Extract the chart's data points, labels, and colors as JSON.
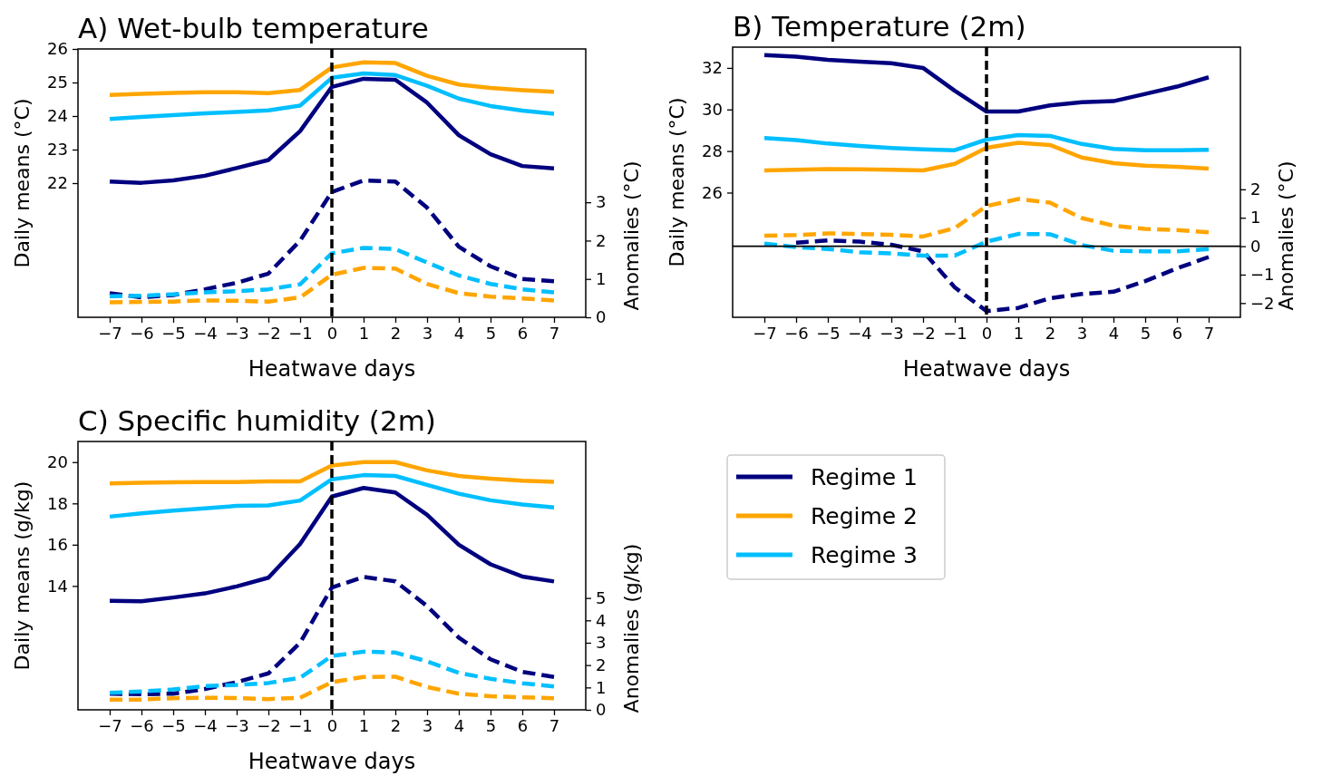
{
  "chart_data": [
    {
      "type": "line",
      "title": "A) Wet-bulb temperature",
      "xlabel": "Heatwave days",
      "ylabel": "Daily means (°C)",
      "y2label": "Anomalies (°C)",
      "x": [
        -7,
        -6,
        -5,
        -4,
        -3,
        -2,
        -1,
        0,
        1,
        2,
        3,
        4,
        5,
        6,
        7
      ],
      "xlim": [
        -8,
        8
      ],
      "xticks": [
        {
          "value": -7,
          "label": "−7"
        },
        {
          "value": -6,
          "label": "−6"
        },
        {
          "value": -5,
          "label": "−5"
        },
        {
          "value": -4,
          "label": "−4"
        },
        {
          "value": -3,
          "label": "−3"
        },
        {
          "value": -2,
          "label": "−2"
        },
        {
          "value": -1,
          "label": "−1"
        },
        0,
        1,
        2,
        3,
        4,
        5,
        6,
        7
      ],
      "ylim": [
        18,
        26
      ],
      "yticks": [
        22,
        23,
        24,
        25,
        26
      ],
      "y2lim": [
        0,
        7
      ],
      "y2ticks": [
        0,
        1,
        2,
        3
      ],
      "ref_lines": [
        {
          "axis": "x",
          "value": 0,
          "color": "#000000",
          "line_style": "dashed"
        }
      ],
      "series": [
        {
          "color": "#ffa500",
          "line_style": "solid",
          "values": [
            24.63,
            24.66,
            24.69,
            24.71,
            24.71,
            24.68,
            24.78,
            25.45,
            25.6,
            25.58,
            25.2,
            24.94,
            24.84,
            24.77,
            24.72
          ]
        },
        {
          "color": "#00bfff",
          "line_style": "solid",
          "values": [
            23.91,
            23.97,
            24.03,
            24.08,
            24.12,
            24.17,
            24.31,
            25.14,
            25.27,
            25.22,
            24.9,
            24.52,
            24.3,
            24.16,
            24.07
          ]
        },
        {
          "color": "#00007f",
          "line_style": "solid",
          "values": [
            22.05,
            22.01,
            22.08,
            22.22,
            22.45,
            22.69,
            23.55,
            24.87,
            25.11,
            25.08,
            24.4,
            23.43,
            22.86,
            22.51,
            22.44
          ]
        },
        {
          "color": "#00007f",
          "line_style": "dashed",
          "axis": "y2",
          "values": [
            0.63,
            0.52,
            0.58,
            0.73,
            0.9,
            1.14,
            2.0,
            3.27,
            3.57,
            3.54,
            2.86,
            1.84,
            1.33,
            1.0,
            0.94
          ]
        },
        {
          "color": "#00bfff",
          "line_style": "dashed",
          "axis": "y2",
          "values": [
            0.55,
            0.56,
            0.6,
            0.65,
            0.68,
            0.73,
            0.86,
            1.67,
            1.81,
            1.78,
            1.43,
            1.09,
            0.87,
            0.73,
            0.65
          ]
        },
        {
          "color": "#ffa500",
          "line_style": "dashed",
          "axis": "y2",
          "values": [
            0.39,
            0.4,
            0.41,
            0.44,
            0.43,
            0.41,
            0.52,
            1.11,
            1.29,
            1.27,
            0.87,
            0.63,
            0.54,
            0.49,
            0.44
          ]
        }
      ]
    },
    {
      "type": "line",
      "title": "B) Temperature (2m)",
      "xlabel": "Heatwave days",
      "ylabel": "Daily means (°C)",
      "y2label": "Anomalies (°C)",
      "x": [
        -7,
        -6,
        -5,
        -4,
        -3,
        -2,
        -1,
        0,
        1,
        2,
        3,
        4,
        5,
        6,
        7
      ],
      "xlim": [
        -8,
        8
      ],
      "xticks": [
        {
          "value": -7,
          "label": "−7"
        },
        {
          "value": -6,
          "label": "−6"
        },
        {
          "value": -5,
          "label": "−5"
        },
        {
          "value": -4,
          "label": "−4"
        },
        {
          "value": -3,
          "label": "−3"
        },
        {
          "value": -2,
          "label": "−2"
        },
        {
          "value": -1,
          "label": "−1"
        },
        0,
        1,
        2,
        3,
        4,
        5,
        6,
        7
      ],
      "ylim": [
        20,
        33
      ],
      "yticks": [
        26,
        28,
        30,
        32
      ],
      "y2lim": [
        -2.5,
        7
      ],
      "y2ticks": [
        {
          "value": -2,
          "label": "−2"
        },
        {
          "value": -1,
          "label": "−1"
        },
        0,
        1,
        2
      ],
      "ref_lines": [
        {
          "axis": "y2",
          "value": 0,
          "color": "#000000",
          "line_style": "solid"
        },
        {
          "axis": "x",
          "value": 0,
          "color": "#000000",
          "line_style": "dashed"
        }
      ],
      "series": [
        {
          "color": "#00007f",
          "line_style": "solid",
          "values": [
            32.62,
            32.54,
            32.39,
            32.3,
            32.23,
            32.0,
            30.9,
            29.9,
            29.9,
            30.2,
            30.35,
            30.4,
            30.75,
            31.1,
            31.55
          ]
        },
        {
          "color": "#00bfff",
          "line_style": "solid",
          "values": [
            28.63,
            28.53,
            28.36,
            28.25,
            28.15,
            28.08,
            28.04,
            28.55,
            28.77,
            28.73,
            28.34,
            28.1,
            28.04,
            28.04,
            28.06
          ]
        },
        {
          "color": "#ffa500",
          "line_style": "solid",
          "values": [
            27.07,
            27.1,
            27.13,
            27.12,
            27.1,
            27.07,
            27.38,
            28.16,
            28.4,
            28.29,
            27.69,
            27.42,
            27.3,
            27.24,
            27.15
          ]
        },
        {
          "color": "#ffa500",
          "line_style": "dashed",
          "axis": "y2",
          "values": [
            0.37,
            0.39,
            0.45,
            0.43,
            0.4,
            0.34,
            0.64,
            1.41,
            1.66,
            1.53,
            0.99,
            0.72,
            0.61,
            0.57,
            0.49
          ]
        },
        {
          "color": "#00007f",
          "line_style": "dashed",
          "axis": "y2",
          "values": [
            null,
            0.12,
            0.2,
            0.16,
            0.05,
            -0.18,
            -1.45,
            -2.28,
            -2.17,
            -1.83,
            -1.68,
            -1.6,
            -1.23,
            -0.78,
            -0.38
          ]
        },
        {
          "color": "#00bfff",
          "line_style": "dashed",
          "axis": "y2",
          "values": [
            0.09,
            -0.03,
            -0.1,
            -0.21,
            -0.25,
            -0.33,
            -0.33,
            0.16,
            0.43,
            0.42,
            0.04,
            -0.16,
            -0.18,
            -0.18,
            -0.1
          ]
        }
      ]
    },
    {
      "type": "line",
      "title": "C) Specific humidity (2m)",
      "xlabel": "Heatwave days",
      "ylabel": "Daily means (g/kg)",
      "y2label": "Anomalies (g/kg)",
      "x": [
        -7,
        -6,
        -5,
        -4,
        -3,
        -2,
        -1,
        0,
        1,
        2,
        3,
        4,
        5,
        6,
        7
      ],
      "xlim": [
        -8,
        8
      ],
      "xticks": [
        {
          "value": -7,
          "label": "−7"
        },
        {
          "value": -6,
          "label": "−6"
        },
        {
          "value": -5,
          "label": "−5"
        },
        {
          "value": -4,
          "label": "−4"
        },
        {
          "value": -3,
          "label": "−3"
        },
        {
          "value": -2,
          "label": "−2"
        },
        {
          "value": -1,
          "label": "−1"
        },
        0,
        1,
        2,
        3,
        4,
        5,
        6,
        7
      ],
      "ylim": [
        8,
        21
      ],
      "yticks": [
        14,
        16,
        18,
        20
      ],
      "y2lim": [
        0,
        12
      ],
      "y2ticks": [
        0,
        1,
        2,
        3,
        4,
        5
      ],
      "legend": "right",
      "ref_lines": [
        {
          "axis": "x",
          "value": 0,
          "color": "#000000",
          "line_style": "dashed"
        }
      ],
      "series": [
        {
          "name": "Regime 1",
          "color": "#00007f",
          "line_style": "solid",
          "values": [
            13.28,
            13.26,
            13.44,
            13.64,
            13.98,
            14.4,
            16.04,
            18.33,
            18.75,
            18.53,
            17.45,
            16.0,
            15.05,
            14.46,
            14.22
          ]
        },
        {
          "name": "Regime 2",
          "color": "#ffa500",
          "line_style": "solid",
          "values": [
            18.97,
            19.0,
            19.02,
            19.04,
            19.04,
            19.07,
            19.07,
            19.84,
            20.0,
            20.0,
            19.6,
            19.33,
            19.2,
            19.1,
            19.05
          ]
        },
        {
          "name": "Regime 3",
          "color": "#00bfff",
          "line_style": "solid",
          "values": [
            17.36,
            17.52,
            17.65,
            17.76,
            17.88,
            17.9,
            18.14,
            19.17,
            19.37,
            19.33,
            18.9,
            18.47,
            18.15,
            17.95,
            17.8
          ]
        },
        {
          "color": "#00007f",
          "line_style": "dashed",
          "axis": "y2",
          "values": [
            0.72,
            0.7,
            0.72,
            0.93,
            1.24,
            1.63,
            3.0,
            5.47,
            5.94,
            5.75,
            4.64,
            3.23,
            2.26,
            1.7,
            1.47
          ]
        },
        {
          "color": "#00bfff",
          "line_style": "dashed",
          "axis": "y2",
          "values": [
            0.76,
            0.82,
            0.91,
            1.06,
            1.11,
            1.2,
            1.43,
            2.41,
            2.6,
            2.56,
            2.17,
            1.65,
            1.39,
            1.19,
            1.04
          ]
        },
        {
          "color": "#ffa500",
          "line_style": "dashed",
          "axis": "y2",
          "values": [
            0.46,
            0.46,
            0.52,
            0.54,
            0.53,
            0.48,
            0.54,
            1.24,
            1.47,
            1.48,
            1.02,
            0.72,
            0.61,
            0.56,
            0.52
          ]
        }
      ]
    }
  ]
}
